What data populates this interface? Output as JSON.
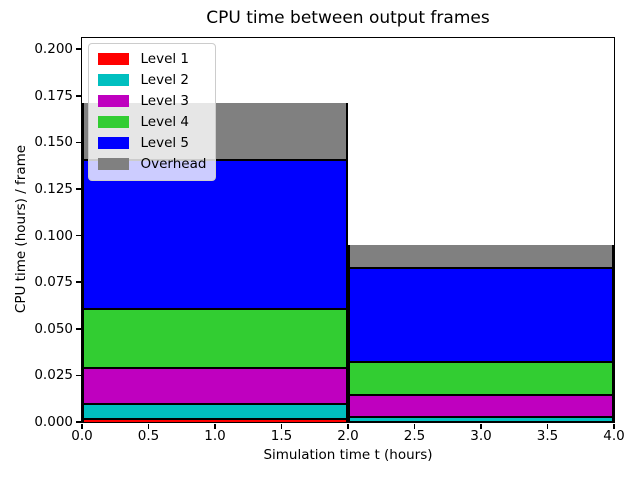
{
  "chart_data": {
    "type": "bar",
    "stacked": true,
    "title": "CPU time between output frames",
    "xlabel": "Simulation time t (hours)",
    "ylabel": "CPU time (hours) / frame",
    "xlim": [
      0.0,
      4.0
    ],
    "ylim": [
      0.0,
      0.206
    ],
    "grid": false,
    "legend_position": "upper left",
    "x_ticks": [
      0.0,
      0.5,
      1.0,
      1.5,
      2.0,
      2.5,
      3.0,
      3.5,
      4.0
    ],
    "x_tick_decimals": 1,
    "y_ticks": [
      0.0,
      0.025,
      0.05,
      0.075,
      0.1,
      0.125,
      0.15,
      0.175,
      0.2
    ],
    "y_tick_decimals": 3,
    "bar_edges_x": [
      0.0,
      2.0,
      4.0
    ],
    "edge_color": "#000000",
    "series": [
      {
        "name": "Level 1",
        "color": "#ff0000",
        "values": [
          0.002,
          0.0005
        ]
      },
      {
        "name": "Level 2",
        "color": "#00bfbf",
        "values": [
          0.008,
          0.0025
        ]
      },
      {
        "name": "Level 3",
        "color": "#bf00bf",
        "values": [
          0.019,
          0.012
        ]
      },
      {
        "name": "Level 4",
        "color": "#32cd32",
        "values": [
          0.032,
          0.0175
        ]
      },
      {
        "name": "Level 5",
        "color": "#0000ff",
        "values": [
          0.08,
          0.0505
        ]
      },
      {
        "name": "Overhead",
        "color": "#808080",
        "values": [
          0.03,
          0.0115
        ]
      }
    ]
  }
}
